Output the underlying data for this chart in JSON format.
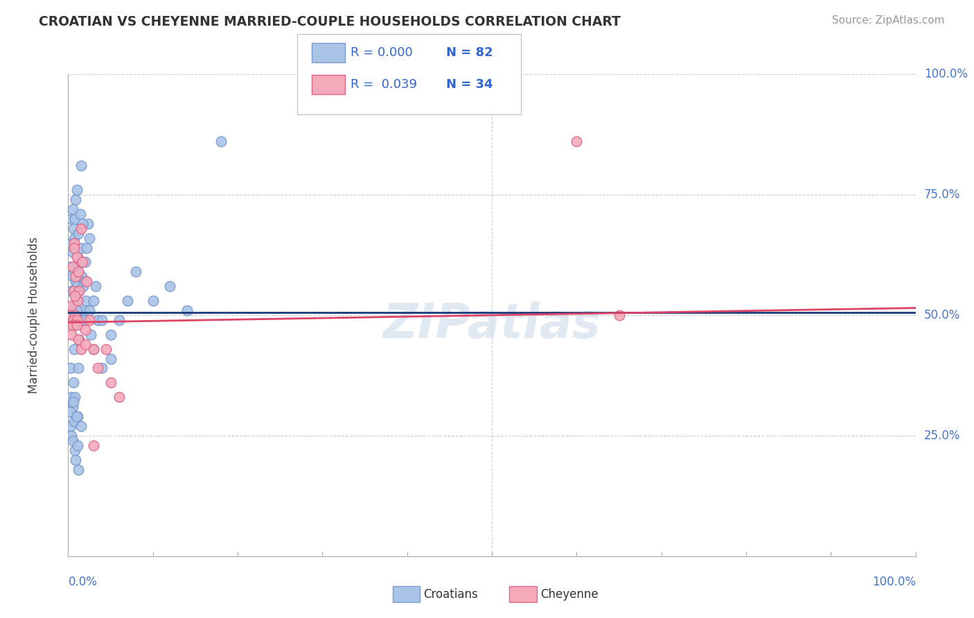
{
  "title": "CROATIAN VS CHEYENNE MARRIED-COUPLE HOUSEHOLDS CORRELATION CHART",
  "source": "Source: ZipAtlas.com",
  "ylabel": "Married-couple Households",
  "xlim": [
    0,
    100
  ],
  "ylim": [
    0,
    100
  ],
  "bg_color": "#ffffff",
  "grid_color": "#cccccc",
  "croatian_color": "#aac4e8",
  "cheyenne_color": "#f4aabb",
  "croatian_edge": "#7799cc",
  "cheyenne_edge": "#dd6688",
  "croatian_line_color": "#1a3a7a",
  "cheyenne_line_color": "#dd4466",
  "legend_R_croatian": "R = 0.000",
  "legend_N_croatian": "N = 82",
  "legend_R_cheyenne": "R =  0.039",
  "legend_N_cheyenne": "N = 34",
  "watermark": "ZIPatlas",
  "croatian_x": [
    0.2,
    0.3,
    0.3,
    0.4,
    0.4,
    0.5,
    0.5,
    0.5,
    0.6,
    0.6,
    0.7,
    0.7,
    0.8,
    0.8,
    0.9,
    0.9,
    1.0,
    1.0,
    1.0,
    1.0,
    1.1,
    1.1,
    1.2,
    1.2,
    1.3,
    1.3,
    1.4,
    1.5,
    1.5,
    1.6,
    1.7,
    1.8,
    1.9,
    2.0,
    2.0,
    2.1,
    2.2,
    2.3,
    2.5,
    2.7,
    3.0,
    3.2,
    3.5,
    4.0,
    5.0,
    6.0,
    7.0,
    8.0,
    10.0,
    12.0,
    14.0,
    18.0,
    0.3,
    0.4,
    0.5,
    0.6,
    0.7,
    0.8,
    0.9,
    1.0,
    1.1,
    1.2,
    1.3,
    1.5,
    1.7,
    2.0,
    2.5,
    3.0,
    4.0,
    5.0,
    0.2,
    0.3,
    0.4,
    0.5,
    0.6,
    0.7,
    0.8,
    0.9,
    1.0,
    1.1,
    1.2,
    1.5
  ],
  "croatian_y": [
    50,
    55,
    60,
    65,
    70,
    58,
    63,
    72,
    68,
    55,
    52,
    66,
    48,
    70,
    57,
    74,
    60,
    50,
    56,
    76,
    62,
    53,
    59,
    67,
    55,
    50,
    71,
    64,
    49,
    58,
    61,
    56,
    51,
    49,
    57,
    53,
    64,
    69,
    51,
    46,
    53,
    56,
    49,
    49,
    41,
    49,
    53,
    59,
    53,
    56,
    51,
    86,
    39,
    33,
    31,
    36,
    43,
    33,
    29,
    51,
    29,
    39,
    45,
    81,
    69,
    61,
    66,
    43,
    39,
    46,
    30,
    27,
    25,
    24,
    32,
    28,
    22,
    20,
    29,
    23,
    18,
    27
  ],
  "cheyenne_x": [
    0.3,
    0.4,
    0.5,
    0.6,
    0.7,
    0.8,
    0.9,
    1.0,
    1.1,
    1.2,
    1.3,
    1.5,
    1.7,
    2.0,
    2.2,
    2.5,
    3.0,
    3.5,
    4.5,
    5.0,
    6.0,
    0.4,
    0.6,
    0.8,
    1.0,
    1.2,
    1.5,
    2.0,
    3.0,
    60.0,
    65.0,
    0.5,
    0.7,
    1.0
  ],
  "cheyenne_y": [
    50,
    52,
    60,
    55,
    65,
    50,
    58,
    62,
    53,
    59,
    55,
    68,
    61,
    47,
    57,
    49,
    43,
    39,
    43,
    36,
    33,
    46,
    49,
    54,
    49,
    45,
    43,
    44,
    23,
    86,
    50,
    48,
    64,
    48
  ],
  "croatian_R": 0.0,
  "cheyenne_R": 0.039,
  "cheyenne_line_x0": 0,
  "cheyenne_line_y0": 48.5,
  "cheyenne_line_x1": 100,
  "cheyenne_line_y1": 51.5
}
